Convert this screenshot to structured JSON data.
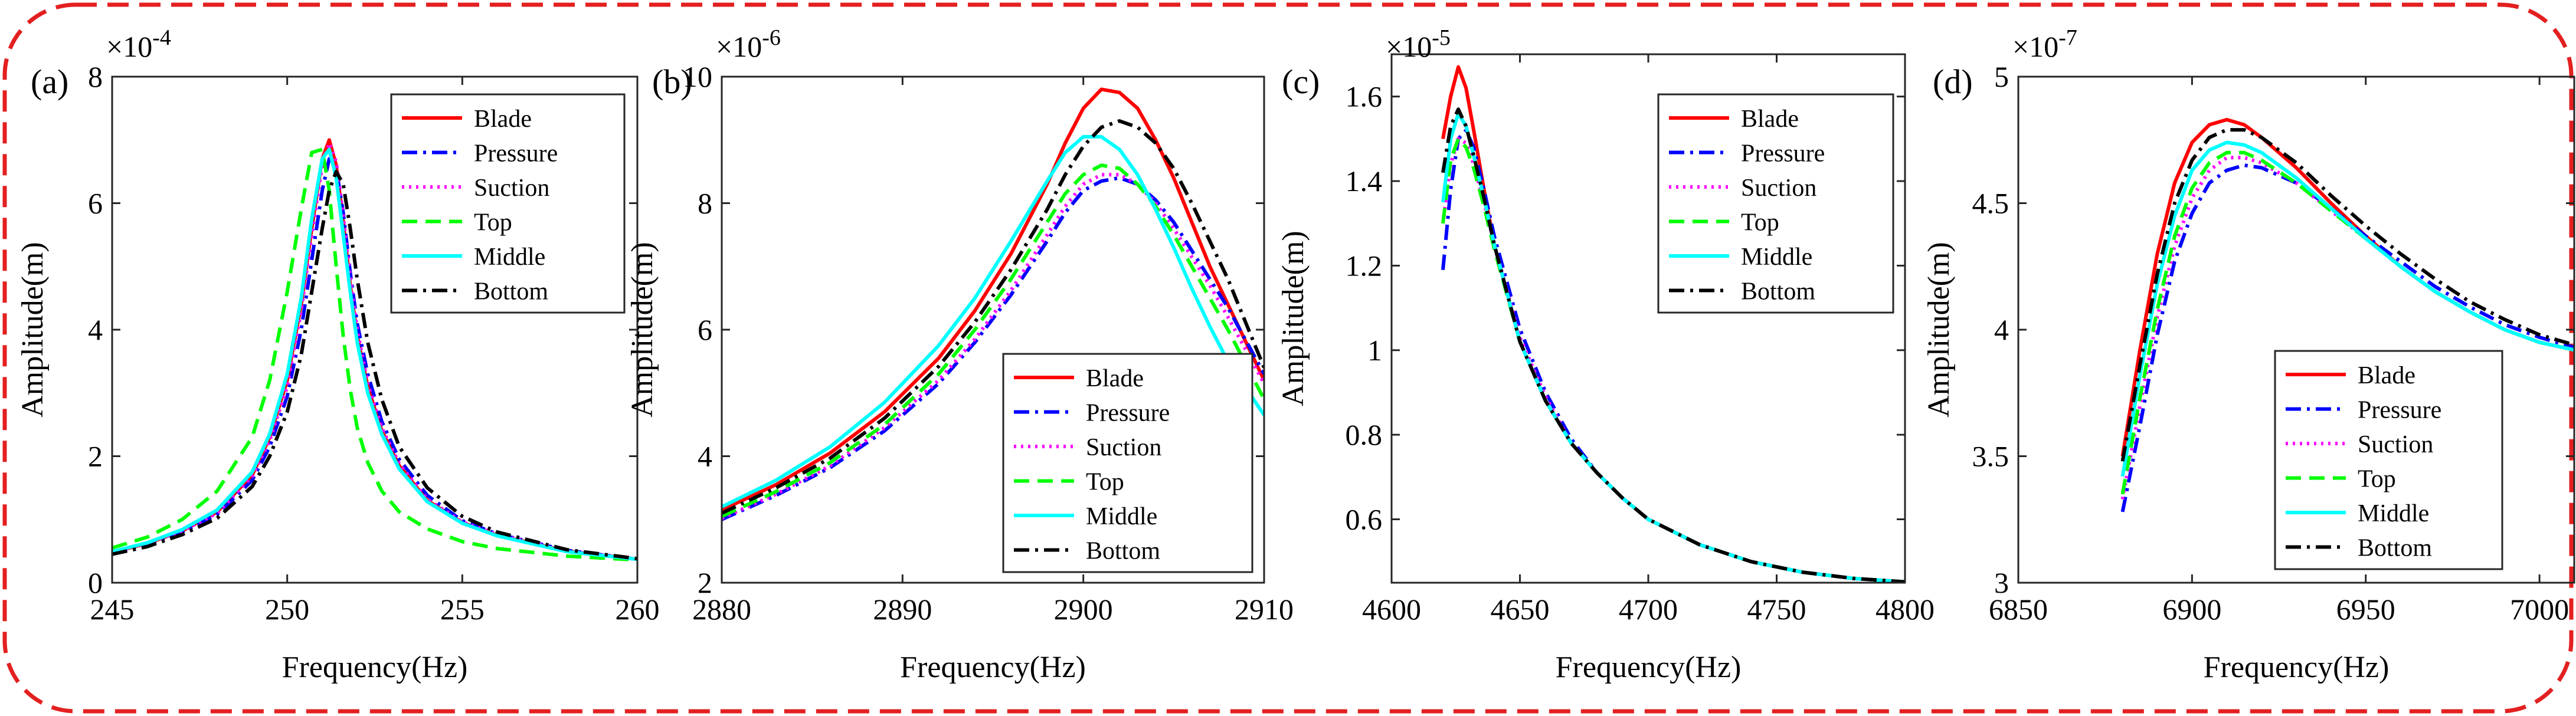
{
  "figure": {
    "frame_color": "#e32020"
  },
  "legend_entries": [
    {
      "name": "Blade",
      "color": "#ff0000",
      "dash": "solid"
    },
    {
      "name": "Pressure",
      "color": "#0000ff",
      "dash": "dashdot"
    },
    {
      "name": "Suction",
      "color": "#ff00ff",
      "dash": "dotted"
    },
    {
      "name": "Top",
      "color": "#00ff00",
      "dash": "dashed"
    },
    {
      "name": "Middle",
      "color": "#00ffff",
      "dash": "solid"
    },
    {
      "name": "Bottom",
      "color": "#000000",
      "dash": "dashdot"
    }
  ],
  "chart_data": [
    {
      "type": "line",
      "panel_label": "(a)",
      "xlabel": "Frequency(Hz)",
      "ylabel": "Amplitude(m)",
      "exponent": "-4",
      "xlim": [
        245,
        260
      ],
      "ylim": [
        0,
        8
      ],
      "xticks": [
        245,
        250,
        255,
        260
      ],
      "yticks": [
        0,
        2,
        4,
        6,
        8
      ],
      "legend_position": "top-right",
      "grid": false,
      "x": [
        245,
        246,
        247,
        248,
        249,
        249.5,
        250,
        250.4,
        250.7,
        251,
        251.2,
        251.4,
        251.6,
        251.8,
        252,
        252.3,
        252.7,
        253.2,
        254,
        255,
        256,
        258,
        260
      ],
      "series": [
        {
          "name": "Blade",
          "values": [
            0.48,
            0.62,
            0.82,
            1.12,
            1.7,
            2.3,
            3.2,
            4.4,
            5.6,
            6.7,
            7.0,
            6.6,
            5.7,
            4.7,
            3.9,
            3.1,
            2.4,
            1.85,
            1.3,
            0.95,
            0.75,
            0.5,
            0.37
          ]
        },
        {
          "name": "Pressure",
          "values": [
            0.47,
            0.6,
            0.8,
            1.08,
            1.62,
            2.15,
            2.95,
            4.0,
            5.1,
            6.2,
            6.7,
            6.55,
            5.85,
            4.9,
            4.1,
            3.3,
            2.55,
            1.95,
            1.38,
            0.98,
            0.77,
            0.51,
            0.37
          ]
        },
        {
          "name": "Suction",
          "values": [
            0.48,
            0.62,
            0.82,
            1.1,
            1.68,
            2.25,
            3.1,
            4.3,
            5.5,
            6.6,
            6.95,
            6.65,
            5.8,
            4.8,
            4.0,
            3.15,
            2.45,
            1.88,
            1.32,
            0.96,
            0.76,
            0.5,
            0.37
          ]
        },
        {
          "name": "Top",
          "values": [
            0.55,
            0.72,
            1.0,
            1.45,
            2.3,
            3.2,
            4.6,
            5.9,
            6.8,
            6.85,
            6.2,
            5.0,
            3.9,
            3.05,
            2.45,
            1.9,
            1.45,
            1.12,
            0.85,
            0.65,
            0.54,
            0.42,
            0.36
          ]
        },
        {
          "name": "Middle",
          "values": [
            0.49,
            0.63,
            0.84,
            1.15,
            1.75,
            2.35,
            3.3,
            4.5,
            5.75,
            6.7,
            6.85,
            6.4,
            5.5,
            4.6,
            3.8,
            3.0,
            2.35,
            1.8,
            1.28,
            0.94,
            0.74,
            0.49,
            0.37
          ]
        },
        {
          "name": "Bottom",
          "values": [
            0.45,
            0.57,
            0.76,
            1.02,
            1.52,
            2.0,
            2.7,
            3.6,
            4.6,
            5.6,
            6.2,
            6.5,
            6.3,
            5.6,
            4.8,
            3.8,
            2.9,
            2.15,
            1.5,
            1.05,
            0.8,
            0.52,
            0.38
          ]
        }
      ]
    },
    {
      "type": "line",
      "panel_label": "(b)",
      "xlabel": "Frequency(Hz)",
      "ylabel": "Amplitude(m)",
      "exponent": "-6",
      "xlim": [
        2880,
        2910
      ],
      "ylim": [
        2,
        10
      ],
      "xticks": [
        2880,
        2890,
        2900,
        2910
      ],
      "yticks": [
        2,
        4,
        6,
        8,
        10
      ],
      "legend_position": "bottom-right",
      "grid": false,
      "x": [
        2880,
        2883,
        2886,
        2889,
        2892,
        2894,
        2896,
        2898,
        2899,
        2900,
        2901,
        2902,
        2903,
        2904,
        2905,
        2906,
        2907,
        2908,
        2910
      ],
      "series": [
        {
          "name": "Blade",
          "values": [
            3.15,
            3.55,
            4.05,
            4.7,
            5.55,
            6.3,
            7.2,
            8.3,
            8.95,
            9.5,
            9.8,
            9.75,
            9.5,
            9.0,
            8.4,
            7.7,
            7.0,
            6.4,
            5.2
          ]
        },
        {
          "name": "Pressure",
          "values": [
            3.0,
            3.38,
            3.82,
            4.4,
            5.15,
            5.8,
            6.55,
            7.4,
            7.85,
            8.2,
            8.35,
            8.4,
            8.3,
            8.05,
            7.7,
            7.25,
            6.8,
            6.35,
            5.3
          ]
        },
        {
          "name": "Suction",
          "values": [
            3.02,
            3.4,
            3.85,
            4.45,
            5.2,
            5.85,
            6.62,
            7.5,
            7.95,
            8.3,
            8.45,
            8.45,
            8.3,
            8.0,
            7.6,
            7.15,
            6.7,
            6.2,
            5.15
          ]
        },
        {
          "name": "Top",
          "values": [
            3.05,
            3.44,
            3.9,
            4.5,
            5.3,
            6.0,
            6.8,
            7.7,
            8.15,
            8.45,
            8.6,
            8.55,
            8.3,
            7.95,
            7.5,
            7.0,
            6.5,
            6.0,
            4.9
          ]
        },
        {
          "name": "Middle",
          "values": [
            3.2,
            3.62,
            4.15,
            4.85,
            5.75,
            6.5,
            7.4,
            8.35,
            8.8,
            9.05,
            9.05,
            8.85,
            8.45,
            7.9,
            7.3,
            6.65,
            6.05,
            5.5,
            4.65
          ]
        },
        {
          "name": "Bottom",
          "values": [
            3.1,
            3.5,
            3.97,
            4.6,
            5.42,
            6.12,
            6.95,
            7.9,
            8.45,
            8.9,
            9.2,
            9.3,
            9.2,
            8.95,
            8.55,
            8.0,
            7.4,
            6.8,
            5.4
          ]
        }
      ]
    },
    {
      "type": "line",
      "panel_label": "(c)",
      "xlabel": "Frequency(Hz)",
      "ylabel": "Amplitude(m)",
      "exponent": "-5",
      "xlim": [
        4600,
        4800
      ],
      "ylim": [
        0.45,
        1.7
      ],
      "xticks": [
        4600,
        4650,
        4700,
        4750,
        4800
      ],
      "yticks": [
        0.6,
        0.8,
        1,
        1.2,
        1.4,
        1.6
      ],
      "legend_position": "top-right",
      "grid": false,
      "x": [
        4620,
        4623,
        4626,
        4629,
        4632,
        4636,
        4640,
        4650,
        4660,
        4670,
        4680,
        4690,
        4700,
        4720,
        4740,
        4760,
        4780,
        4800
      ],
      "series": [
        {
          "name": "Blade",
          "values": [
            1.5,
            1.6,
            1.67,
            1.62,
            1.52,
            1.38,
            1.25,
            1.02,
            0.88,
            0.78,
            0.71,
            0.65,
            0.6,
            0.54,
            0.5,
            0.475,
            0.46,
            0.452
          ]
        },
        {
          "name": "Pressure",
          "values": [
            1.19,
            1.38,
            1.5,
            1.52,
            1.48,
            1.38,
            1.27,
            1.05,
            0.9,
            0.79,
            0.71,
            0.65,
            0.6,
            0.54,
            0.5,
            0.475,
            0.46,
            0.452
          ]
        },
        {
          "name": "Suction",
          "values": [
            1.3,
            1.44,
            1.5,
            1.49,
            1.44,
            1.35,
            1.25,
            1.03,
            0.89,
            0.78,
            0.71,
            0.65,
            0.6,
            0.54,
            0.5,
            0.475,
            0.46,
            0.452
          ]
        },
        {
          "name": "Top",
          "values": [
            1.3,
            1.45,
            1.5,
            1.48,
            1.43,
            1.34,
            1.24,
            1.02,
            0.88,
            0.78,
            0.71,
            0.65,
            0.6,
            0.54,
            0.5,
            0.475,
            0.46,
            0.452
          ]
        },
        {
          "name": "Middle",
          "values": [
            1.35,
            1.5,
            1.56,
            1.53,
            1.46,
            1.36,
            1.25,
            1.02,
            0.88,
            0.78,
            0.71,
            0.65,
            0.6,
            0.54,
            0.5,
            0.475,
            0.46,
            0.452
          ]
        },
        {
          "name": "Bottom",
          "values": [
            1.42,
            1.53,
            1.57,
            1.53,
            1.46,
            1.36,
            1.25,
            1.02,
            0.88,
            0.78,
            0.71,
            0.65,
            0.6,
            0.54,
            0.5,
            0.475,
            0.46,
            0.452
          ]
        }
      ]
    },
    {
      "type": "line",
      "panel_label": "(d)",
      "xlabel": "Frequency(Hz)",
      "ylabel": "Amplitude(m)",
      "exponent": "-7",
      "xlim": [
        6850,
        7010
      ],
      "ylim": [
        3,
        5
      ],
      "xticks": [
        6850,
        6900,
        6950,
        7000
      ],
      "yticks": [
        3,
        3.5,
        4,
        4.5,
        5
      ],
      "legend_position": "bottom-right",
      "grid": false,
      "x": [
        6880,
        6885,
        6890,
        6895,
        6900,
        6905,
        6910,
        6915,
        6920,
        6930,
        6940,
        6950,
        6960,
        6970,
        6980,
        6990,
        7000,
        7010
      ],
      "series": [
        {
          "name": "Blade",
          "values": [
            3.5,
            3.92,
            4.3,
            4.58,
            4.74,
            4.81,
            4.83,
            4.81,
            4.76,
            4.64,
            4.5,
            4.37,
            4.25,
            4.15,
            4.07,
            4.0,
            3.95,
            3.92
          ]
        },
        {
          "name": "Pressure",
          "values": [
            3.28,
            3.62,
            3.98,
            4.27,
            4.46,
            4.58,
            4.63,
            4.65,
            4.64,
            4.58,
            4.48,
            4.37,
            4.27,
            4.17,
            4.09,
            4.02,
            3.97,
            3.93
          ]
        },
        {
          "name": "Suction",
          "values": [
            3.33,
            3.7,
            4.05,
            4.33,
            4.52,
            4.63,
            4.68,
            4.68,
            4.66,
            4.58,
            4.47,
            4.36,
            4.25,
            4.15,
            4.07,
            4.0,
            3.95,
            3.92
          ]
        },
        {
          "name": "Top",
          "values": [
            3.35,
            3.73,
            4.08,
            4.37,
            4.56,
            4.66,
            4.7,
            4.7,
            4.67,
            4.58,
            4.47,
            4.36,
            4.25,
            4.15,
            4.07,
            4.0,
            3.95,
            3.92
          ]
        },
        {
          "name": "Middle",
          "values": [
            3.42,
            3.82,
            4.18,
            4.45,
            4.63,
            4.71,
            4.74,
            4.73,
            4.7,
            4.6,
            4.48,
            4.36,
            4.25,
            4.15,
            4.07,
            4.0,
            3.95,
            3.92
          ]
        },
        {
          "name": "Bottom",
          "values": [
            3.48,
            3.86,
            4.22,
            4.5,
            4.67,
            4.76,
            4.79,
            4.79,
            4.76,
            4.66,
            4.53,
            4.41,
            4.3,
            4.2,
            4.11,
            4.04,
            3.98,
            3.94
          ]
        }
      ]
    }
  ]
}
